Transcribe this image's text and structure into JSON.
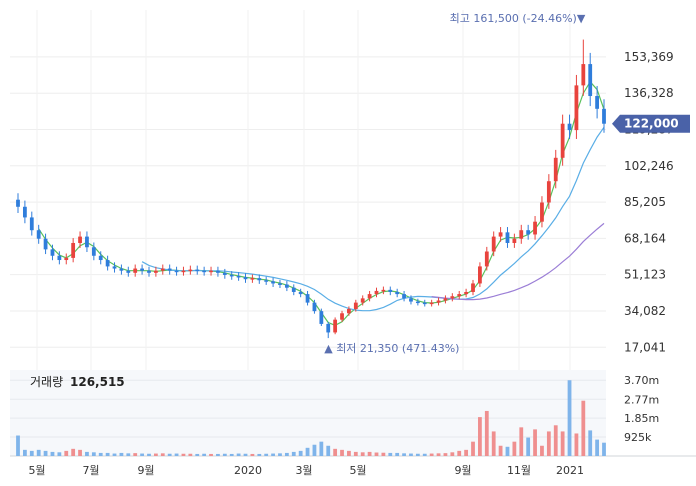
{
  "chart_data": {
    "type": "candlestick",
    "price_axis": {
      "ticks": [
        "153,369",
        "136,328",
        "119,287",
        "102,246",
        "85,205",
        "68,164",
        "51,123",
        "34,082",
        "17,041"
      ],
      "tick_values": [
        153369,
        136328,
        119287,
        102246,
        85205,
        68164,
        51123,
        34082,
        17041
      ]
    },
    "time_axis": {
      "labels": [
        "5월",
        "7월",
        "9월",
        "2020",
        "3월",
        "5월",
        "9월",
        "11월",
        "2021"
      ]
    },
    "current_price": "122,000",
    "current_value": 122000,
    "high_annotation": {
      "label": "최고",
      "value": "161,500",
      "change": "(-24.46%)",
      "marker": "▼",
      "price": 161500
    },
    "low_annotation": {
      "label": "최저",
      "value": "21,350",
      "change": "(471.43%)",
      "marker": "▲",
      "price": 21350
    },
    "volume_panel": {
      "title": "거래량",
      "value": "126,515",
      "ticks": [
        "3.70m",
        "2.77m",
        "1.85m",
        "925k"
      ],
      "tick_values": [
        3700000,
        2770000,
        1850000,
        925000
      ]
    },
    "colors": {
      "up": "#e8433d",
      "down": "#2f7ddb",
      "ma_short": "#59c15b",
      "ma_mid": "#5aaee6",
      "ma_long": "#9b7ed6",
      "volume_up": "#ef8f8f",
      "volume_down": "#7fb4ea",
      "price_tag": "#4a62a8"
    },
    "weekly_close": [
      83000,
      78000,
      72000,
      68000,
      63000,
      60000,
      58000,
      59000,
      66000,
      69000,
      64000,
      60000,
      58000,
      55000,
      54000,
      53000,
      52000,
      54000,
      53000,
      52000,
      53000,
      54000,
      53000,
      52500,
      53000,
      53500,
      53000,
      52500,
      53000,
      52000,
      51000,
      50500,
      50000,
      49000,
      49500,
      48500,
      48000,
      47000,
      46500,
      45000,
      43000,
      42000,
      38000,
      34000,
      28000,
      24000,
      30000,
      33000,
      35000,
      38000,
      40000,
      42000,
      43500,
      44000,
      43000,
      42000,
      40000,
      38500,
      38000,
      37500,
      38000,
      39000,
      40000,
      41000,
      42000,
      43000,
      47000,
      55000,
      62000,
      69000,
      71000,
      66000,
      68000,
      72000,
      70000,
      76000,
      85000,
      95000,
      106000,
      122000,
      119000,
      140000,
      150000,
      135000,
      129000,
      122000
    ],
    "weekly_volume": [
      1000000,
      300000,
      250000,
      300000,
      250000,
      200000,
      180000,
      250000,
      350000,
      300000,
      200000,
      180000,
      150000,
      150000,
      120000,
      150000,
      130000,
      140000,
      120000,
      110000,
      120000,
      130000,
      110000,
      120000,
      110000,
      110000,
      100000,
      110000,
      100000,
      100000,
      110000,
      100000,
      120000,
      110000,
      100000,
      100000,
      110000,
      120000,
      130000,
      150000,
      200000,
      250000,
      400000,
      550000,
      700000,
      500000,
      350000,
      300000,
      250000,
      200000,
      180000,
      200000,
      170000,
      160000,
      150000,
      150000,
      130000,
      120000,
      110000,
      110000,
      120000,
      130000,
      140000,
      180000,
      250000,
      300000,
      700000,
      1900000,
      2200000,
      1200000,
      500000,
      450000,
      700000,
      1400000,
      900000,
      1300000,
      500000,
      1200000,
      1500000,
      1200000,
      3700000,
      1100000,
      2700000,
      1250000,
      800000,
      650000
    ]
  }
}
